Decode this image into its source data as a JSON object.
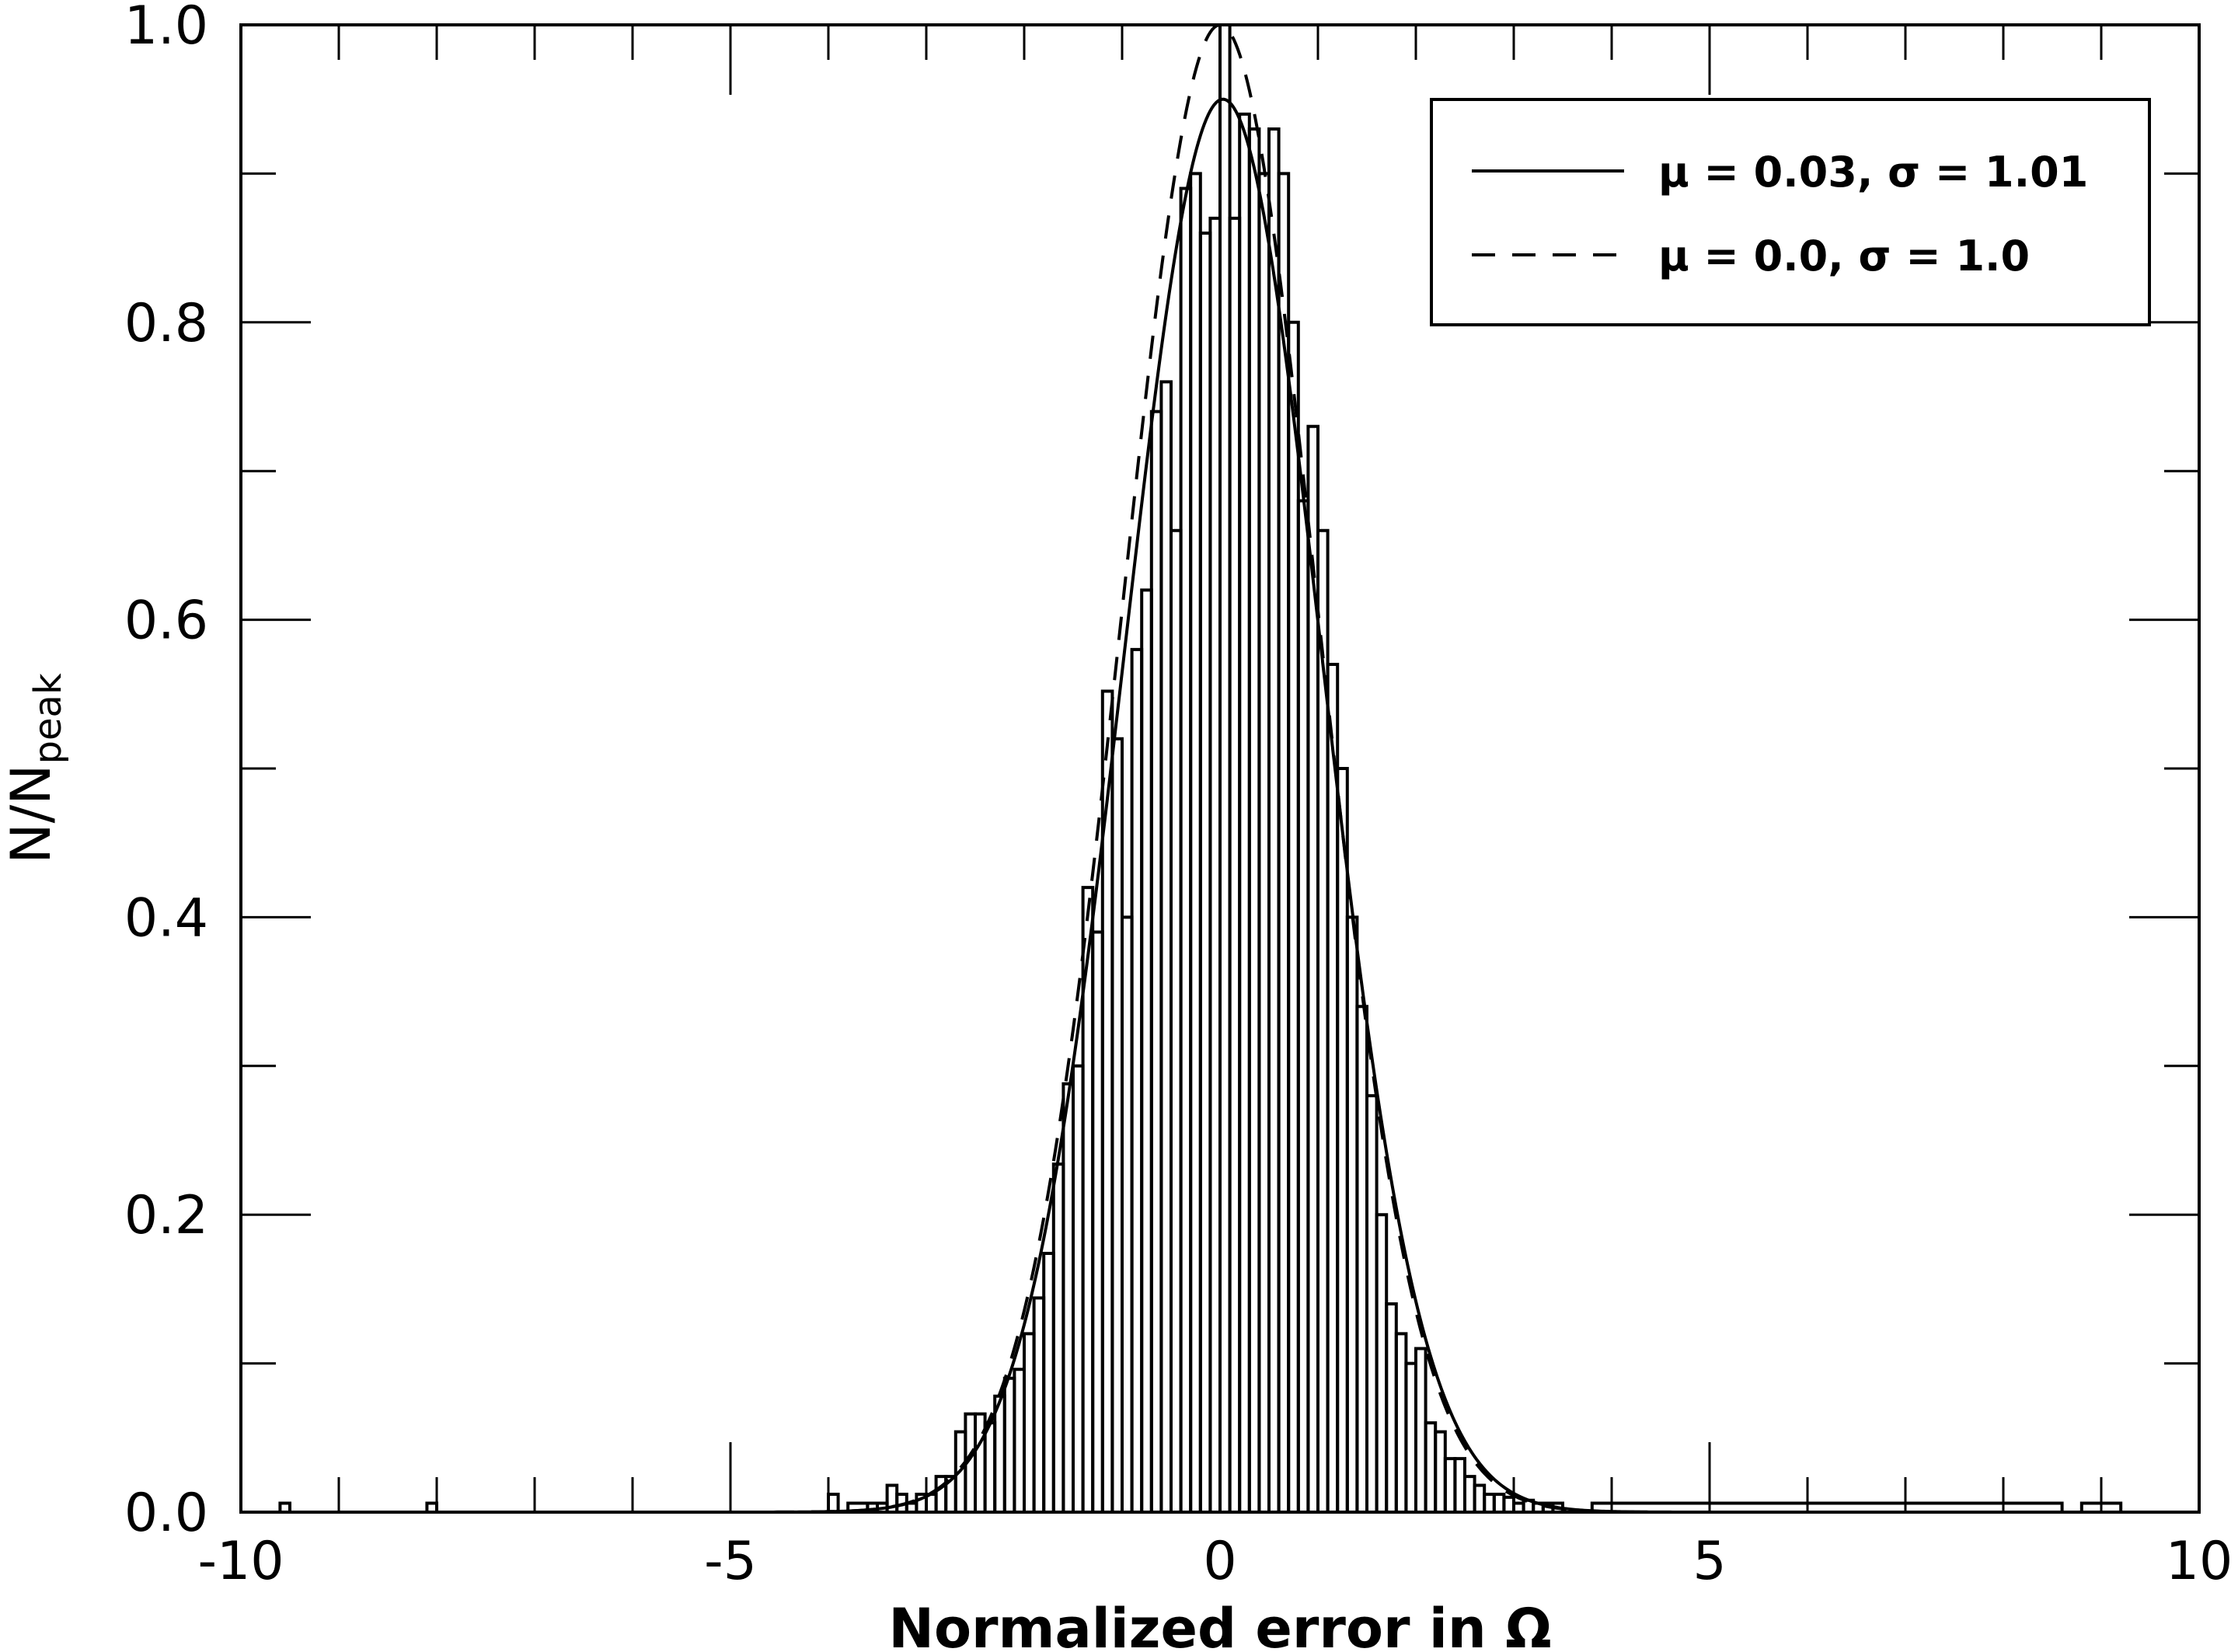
{
  "chart_data": {
    "type": "histogram",
    "xlabel": "Normalized error in Ω",
    "ylabel": {
      "main": "N/N",
      "sub": "peak"
    },
    "xlim": [
      -10,
      10
    ],
    "ylim": [
      0,
      1.0
    ],
    "x_ticks": [
      -10,
      -5,
      0,
      5,
      10
    ],
    "x_tick_labels": [
      "-10",
      "-5",
      "0",
      "5",
      "10"
    ],
    "y_ticks": [
      0,
      0.2,
      0.4,
      0.6,
      0.8,
      1.0
    ],
    "y_tick_labels": [
      "0.0",
      "0.2",
      "0.4",
      "0.6",
      "0.8",
      "1.0"
    ],
    "grid": false,
    "legend_position": "top-right",
    "histogram": {
      "bin_edges": [
        -9.6,
        -9.5,
        -9.4,
        -8.1,
        -8.0,
        -7.9,
        -4.0,
        -3.9,
        -3.8,
        -3.6,
        -3.5,
        -3.4,
        -3.3,
        -3.2,
        -3.1,
        -3.0,
        -2.9,
        -2.8,
        -2.7,
        -2.6,
        -2.5,
        -2.4,
        -2.3,
        -2.2,
        -2.1,
        -2.0,
        -1.9,
        -1.8,
        -1.7,
        -1.6,
        -1.5,
        -1.4,
        -1.3,
        -1.2,
        -1.1,
        -1.0,
        -0.9,
        -0.8,
        -0.7,
        -0.6,
        -0.5,
        -0.4,
        -0.3,
        -0.2,
        -0.1,
        0.0,
        0.1,
        0.2,
        0.3,
        0.4,
        0.5,
        0.6,
        0.7,
        0.8,
        0.9,
        1.0,
        1.1,
        1.2,
        1.3,
        1.4,
        1.5,
        1.6,
        1.7,
        1.8,
        1.9,
        2.0,
        2.1,
        2.2,
        2.3,
        2.4,
        2.5,
        2.6,
        2.7,
        2.8,
        2.9,
        3.0,
        3.1,
        3.2,
        3.3,
        3.4,
        3.5,
        3.6,
        3.7,
        3.8,
        8.6,
        8.7,
        8.8,
        9.2,
        9.3,
        9.4
      ],
      "counts": [
        0.006,
        0,
        0,
        0.006,
        0,
        0,
        0.012,
        0,
        0.006,
        0.006,
        0.006,
        0.018,
        0.012,
        0.006,
        0.012,
        0.012,
        0.024,
        0.024,
        0.054,
        0.066,
        0.066,
        0.06,
        0.078,
        0.09,
        0.096,
        0.12,
        0.144,
        0.174,
        0.234,
        0.288,
        0.3,
        0.42,
        0.39,
        0.552,
        0.52,
        0.4,
        0.58,
        0.62,
        0.74,
        0.76,
        0.66,
        0.89,
        0.9,
        0.86,
        0.87,
        1.0,
        0.87,
        0.94,
        0.93,
        0.9,
        0.93,
        0.9,
        0.8,
        0.68,
        0.73,
        0.66,
        0.57,
        0.5,
        0.4,
        0.34,
        0.28,
        0.2,
        0.14,
        0.12,
        0.1,
        0.11,
        0.06,
        0.054,
        0.036,
        0.036,
        0.024,
        0.018,
        0.012,
        0.012,
        0.01,
        0.006,
        0.008,
        0.006,
        0.006,
        0.006,
        0,
        0,
        0,
        0.006,
        0,
        0,
        0.006,
        0,
        0
      ]
    },
    "series": [
      {
        "name": "μ = 0.03, σ = 1.01",
        "type": "gaussian",
        "mu": 0.03,
        "sigma": 1.01,
        "amplitude": 0.95,
        "style": "solid"
      },
      {
        "name": "μ = 0.0, σ = 1.0",
        "type": "gaussian",
        "mu": 0.0,
        "sigma": 1.0,
        "amplitude": 1.0,
        "style": "dashed"
      }
    ]
  }
}
